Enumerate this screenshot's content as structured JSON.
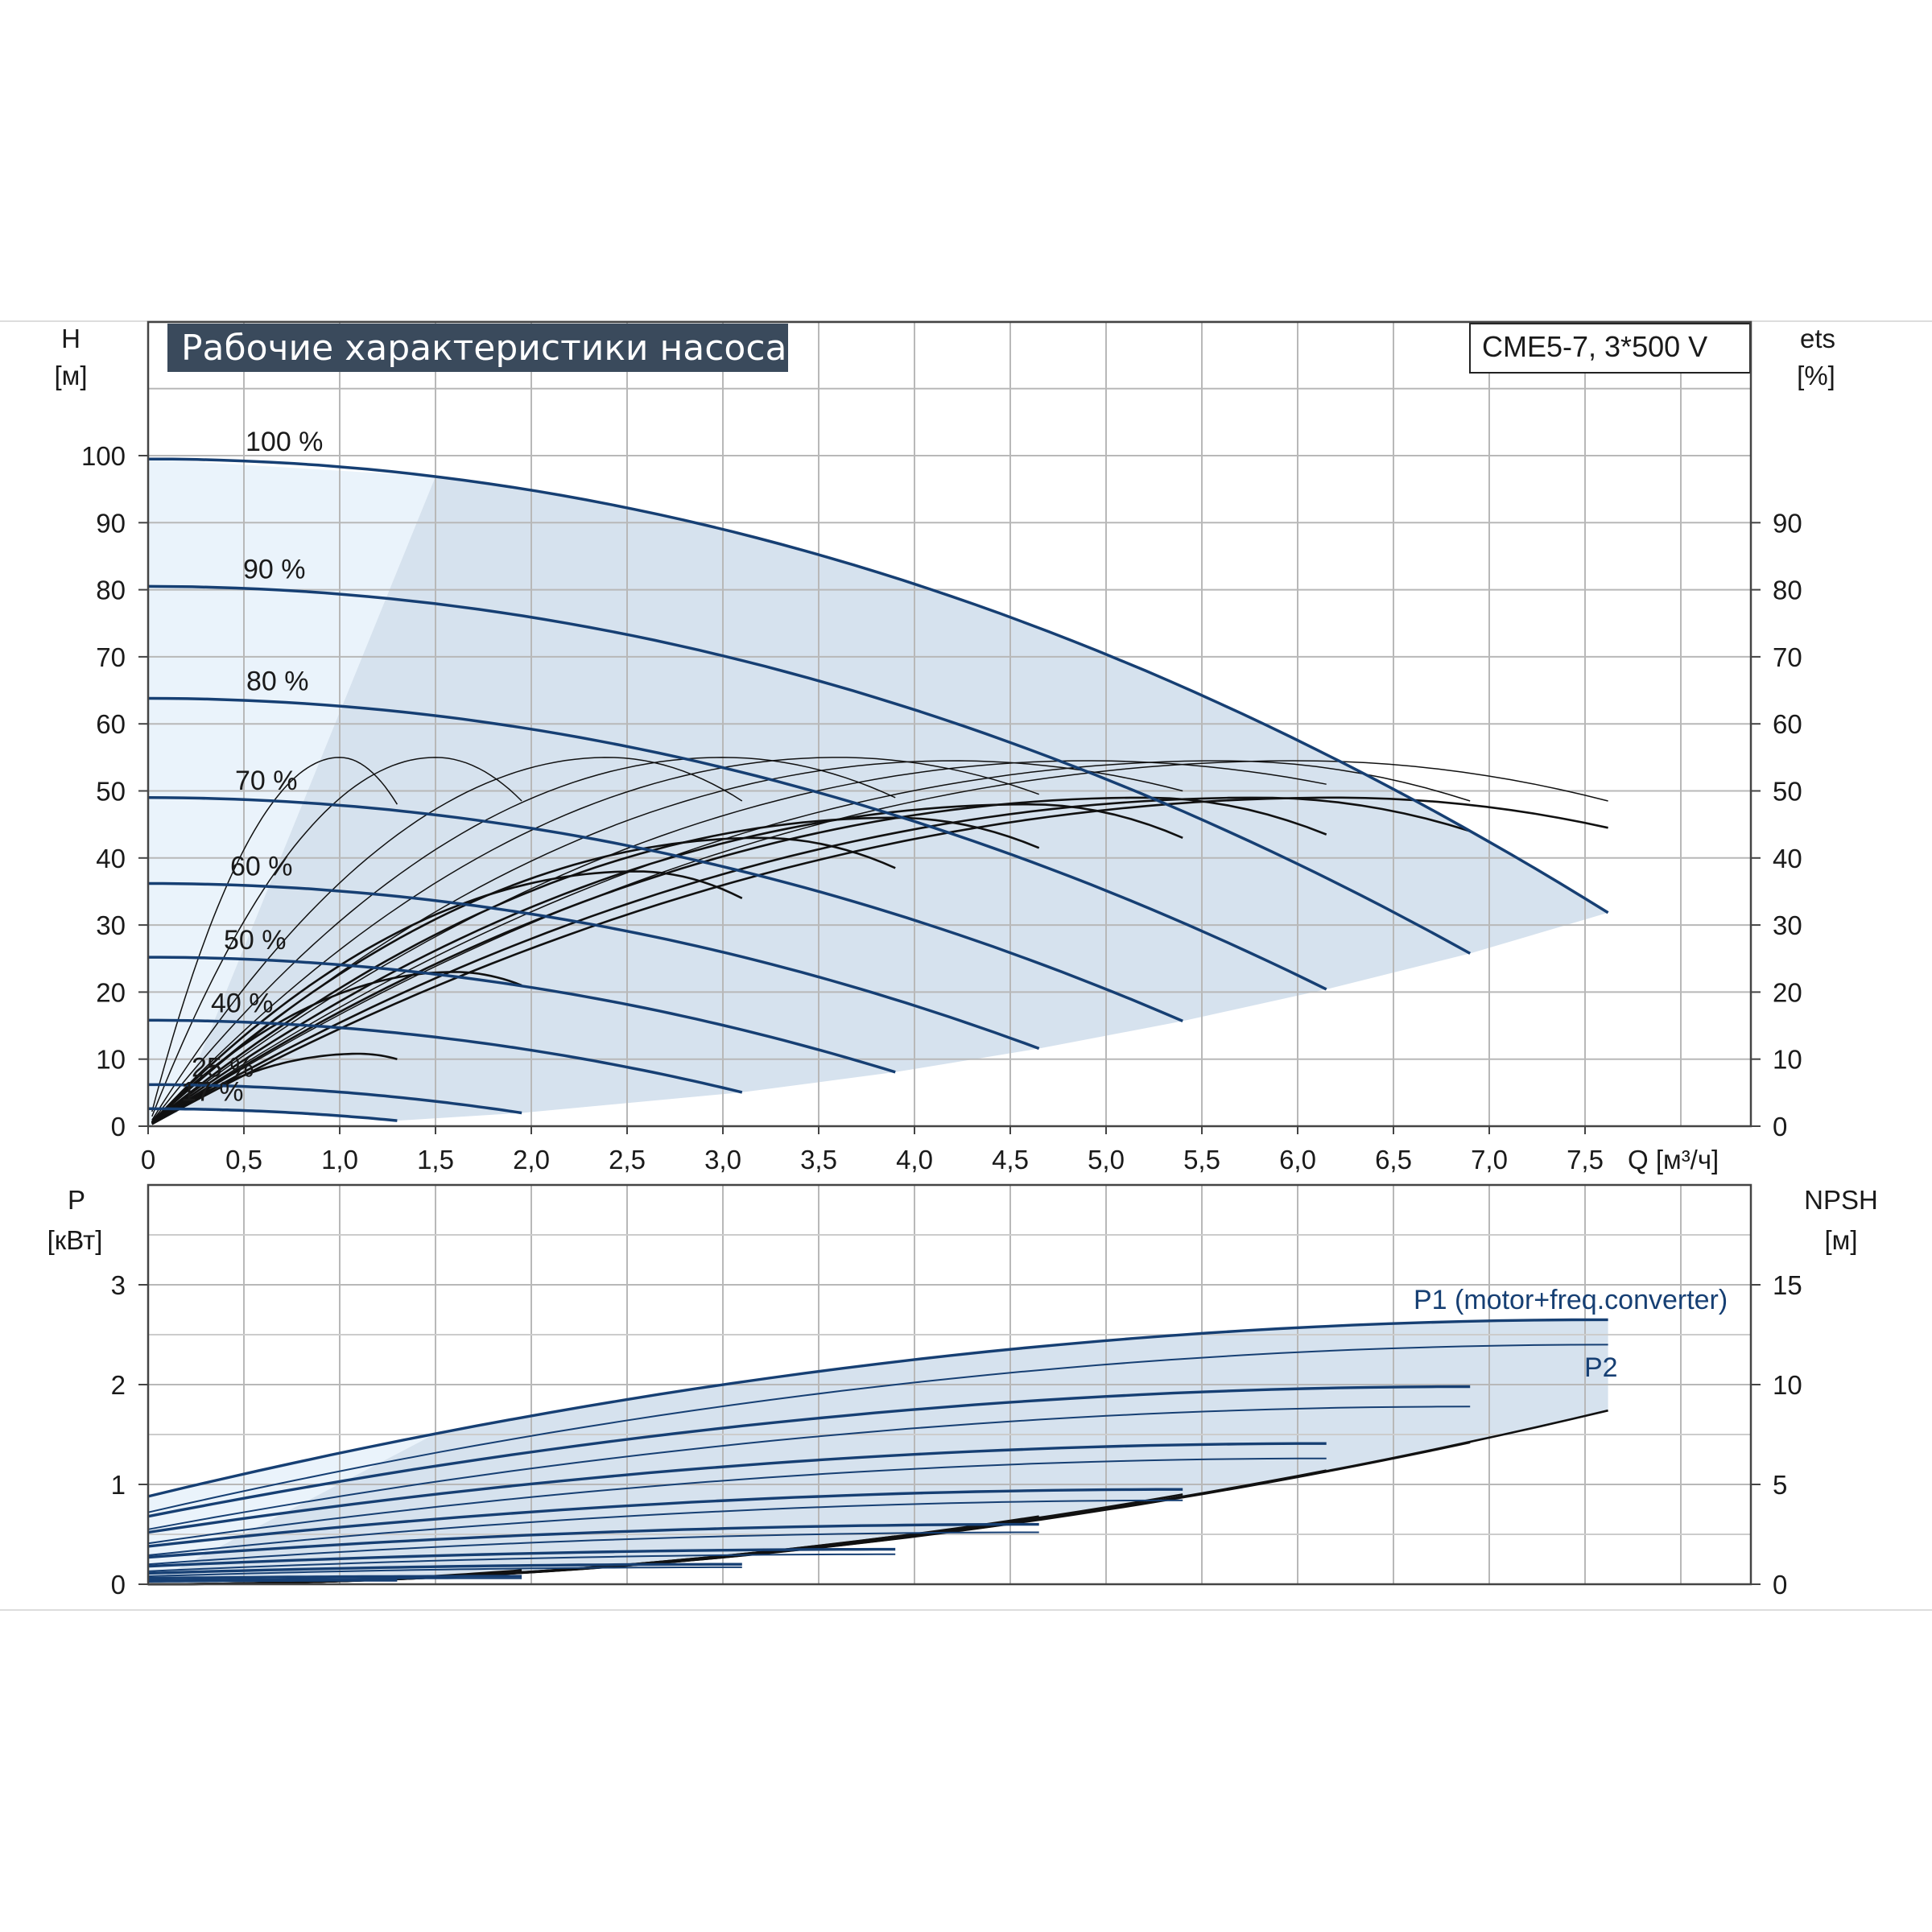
{
  "colors": {
    "blue_curve": "#163f73",
    "black_curve": "#111111",
    "envelope_fill": "#d6e2ee",
    "low_region_fill": "#eaf3fb",
    "grid": "#b8b8b8",
    "title_bg": "#3a4a5c"
  },
  "chart_data": [
    {
      "type": "line",
      "title": "Рабочие характеристики насоса",
      "model_label": "CME5-7, 3*500 V",
      "ylabel": "H",
      "ylabel_unit": "[м]",
      "y2label": "ets",
      "y2label_unit": "[%]",
      "xlabel": "Q [м³/ч]",
      "xlim": [
        0,
        8.4
      ],
      "ylim": [
        0,
        120
      ],
      "y2lim": [
        0,
        120
      ],
      "x_ticks": [
        "0",
        "0,5",
        "1,0",
        "1,5",
        "2,0",
        "2,5",
        "3,0",
        "3,5",
        "4,0",
        "4,5",
        "5,0",
        "5,5",
        "6,0",
        "6,5",
        "7,0",
        "7,5"
      ],
      "y_ticks": [
        "0",
        "10",
        "20",
        "30",
        "40",
        "50",
        "60",
        "70",
        "80",
        "90",
        "100"
      ],
      "y2_ticks": [
        "0",
        "10",
        "20",
        "30",
        "40",
        "50",
        "60",
        "70",
        "80",
        "90"
      ],
      "grid": true,
      "head_curves": [
        {
          "speed_label": "100 %",
          "q_max": 7.62,
          "h0": 99.5,
          "k": 0.68
        },
        {
          "speed_label": "90 %",
          "q_max": 6.9,
          "h0": 80.5,
          "k": 0.68
        },
        {
          "speed_label": "80 %",
          "q_max": 6.15,
          "h0": 63.8,
          "k": 0.68
        },
        {
          "speed_label": "70 %",
          "q_max": 5.4,
          "h0": 49.0,
          "k": 0.68
        },
        {
          "speed_label": "60 %",
          "q_max": 4.65,
          "h0": 36.2,
          "k": 0.68
        },
        {
          "speed_label": "50 %",
          "q_max": 3.9,
          "h0": 25.2,
          "k": 0.68
        },
        {
          "speed_label": "40 %",
          "q_max": 3.1,
          "h0": 15.8,
          "k": 0.68
        },
        {
          "speed_label": "25 %",
          "q_max": 1.95,
          "h0": 6.2,
          "k": 0.68
        },
        {
          "speed_label": "17 %",
          "q_max": 1.3,
          "h0": 2.6,
          "k": 0.68
        }
      ],
      "efficiency_curves": [
        {
          "q_end": 1.3,
          "q_peak": 1.0,
          "peak": 55,
          "end": 48
        },
        {
          "q_end": 1.95,
          "q_peak": 1.5,
          "peak": 55,
          "end": 48.5
        },
        {
          "q_end": 3.1,
          "q_peak": 2.4,
          "peak": 55,
          "end": 48.5
        },
        {
          "q_end": 3.9,
          "q_peak": 3.0,
          "peak": 55,
          "end": 49
        },
        {
          "q_end": 4.65,
          "q_peak": 3.6,
          "peak": 55,
          "end": 49.5
        },
        {
          "q_end": 5.4,
          "q_peak": 4.2,
          "peak": 54.5,
          "end": 50
        },
        {
          "q_end": 6.15,
          "q_peak": 4.9,
          "peak": 54.5,
          "end": 51
        },
        {
          "q_end": 6.9,
          "q_peak": 5.6,
          "peak": 54.5,
          "end": 48.5
        },
        {
          "q_end": 7.62,
          "q_peak": 6.0,
          "peak": 54.5,
          "end": 48.5
        },
        {
          "q_end": 1.3,
          "q_peak": 1.1,
          "peak": 10.8,
          "end": 10
        },
        {
          "q_end": 1.95,
          "q_peak": 1.6,
          "peak": 23,
          "end": 21
        },
        {
          "q_end": 3.1,
          "q_peak": 2.55,
          "peak": 38,
          "end": 34
        },
        {
          "q_end": 3.9,
          "q_peak": 3.2,
          "peak": 43,
          "end": 38.5
        },
        {
          "q_end": 4.65,
          "q_peak": 3.9,
          "peak": 46,
          "end": 41.5
        },
        {
          "q_end": 5.4,
          "q_peak": 4.6,
          "peak": 48,
          "end": 43
        },
        {
          "q_end": 6.15,
          "q_peak": 5.2,
          "peak": 49,
          "end": 43.5
        },
        {
          "q_end": 6.9,
          "q_peak": 5.8,
          "peak": 49,
          "end": 44
        },
        {
          "q_end": 7.62,
          "q_peak": 6.2,
          "peak": 49,
          "end": 44.5
        }
      ]
    },
    {
      "type": "line",
      "ylabel": "P",
      "ylabel_unit": "[кВт]",
      "y2label": "NPSH",
      "y2label_unit": "[м]",
      "xlim": [
        0,
        8.4
      ],
      "ylim": [
        0,
        4
      ],
      "y2lim": [
        0,
        20
      ],
      "y_ticks": [
        "0",
        "1",
        "2",
        "3"
      ],
      "y2_ticks": [
        "0",
        "5",
        "10",
        "15"
      ],
      "grid": true,
      "series_labels": [
        "P1 (motor+freq.converter)",
        "P2"
      ],
      "p1_curves": [
        {
          "q_max": 7.62,
          "p0": 0.88,
          "p_end": 2.65
        },
        {
          "q_max": 6.9,
          "p0": 0.68,
          "p_end": 1.98
        },
        {
          "q_max": 6.15,
          "p0": 0.52,
          "p_end": 1.41
        },
        {
          "q_max": 5.4,
          "p0": 0.38,
          "p_end": 0.95
        },
        {
          "q_max": 4.65,
          "p0": 0.27,
          "p_end": 0.6
        },
        {
          "q_max": 3.9,
          "p0": 0.18,
          "p_end": 0.35
        },
        {
          "q_max": 3.1,
          "p0": 0.11,
          "p_end": 0.2
        },
        {
          "q_max": 1.95,
          "p0": 0.06,
          "p_end": 0.08
        },
        {
          "q_max": 1.3,
          "p0": 0.03,
          "p_end": 0.04
        }
      ],
      "p2_curves": [
        {
          "q_max": 7.62,
          "p0": 0.72,
          "p_end": 2.4
        },
        {
          "q_max": 6.9,
          "p0": 0.55,
          "p_end": 1.78
        },
        {
          "q_max": 6.15,
          "p0": 0.41,
          "p_end": 1.26
        },
        {
          "q_max": 5.4,
          "p0": 0.29,
          "p_end": 0.84
        },
        {
          "q_max": 4.65,
          "p0": 0.2,
          "p_end": 0.52
        },
        {
          "q_max": 3.9,
          "p0": 0.13,
          "p_end": 0.3
        },
        {
          "q_max": 3.1,
          "p0": 0.08,
          "p_end": 0.17
        },
        {
          "q_max": 1.95,
          "p0": 0.04,
          "p_end": 0.06
        }
      ],
      "npsh_curves": [
        {
          "q_max": 7.62,
          "n_end": 8.7
        },
        {
          "q_max": 6.9,
          "n_end": 7.1
        },
        {
          "q_max": 6.15,
          "n_end": 5.7
        },
        {
          "q_max": 5.4,
          "n_end": 4.5
        },
        {
          "q_max": 4.65,
          "n_end": 3.4
        },
        {
          "q_max": 3.9,
          "n_end": 2.4
        },
        {
          "q_max": 3.1,
          "n_end": 1.5
        },
        {
          "q_max": 1.95,
          "n_end": 0.7
        }
      ]
    }
  ]
}
